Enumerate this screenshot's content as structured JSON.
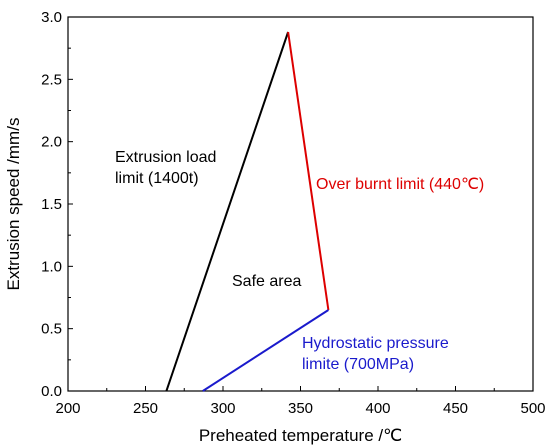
{
  "chart_data": {
    "type": "line",
    "xlabel": "Preheated temperature /℃",
    "ylabel": "Extrusion speed /mm/s",
    "xlim": [
      200,
      500
    ],
    "ylim": [
      0,
      3.0
    ],
    "xticks": [
      200,
      250,
      300,
      350,
      400,
      450,
      500
    ],
    "yticks": [
      "0.0",
      "0.5",
      "1.0",
      "1.5",
      "2.0",
      "2.5",
      "3.0"
    ],
    "grid": false,
    "series": [
      {
        "color": "#000000",
        "points": [
          [
            263.5,
            0.0
          ],
          [
            342,
            2.88
          ]
        ]
      },
      {
        "color": "#dd0000",
        "points": [
          [
            342,
            2.88
          ],
          [
            368,
            0.65
          ]
        ]
      },
      {
        "color": "#1a1acc",
        "points": [
          [
            287,
            0.0
          ],
          [
            368,
            0.65
          ]
        ]
      }
    ],
    "annotations": [
      {
        "lines": [
          "Extrusion load",
          "limit (1400t)"
        ],
        "color": "#000000"
      },
      {
        "lines": [
          "Over burnt limit (440℃)"
        ],
        "color": "#dd0000"
      },
      {
        "lines": [
          "Safe area"
        ],
        "color": "#000000"
      },
      {
        "lines": [
          "Hydrostatic pressure",
          "limite (700MPa)"
        ],
        "color": "#1a1acc"
      }
    ]
  }
}
